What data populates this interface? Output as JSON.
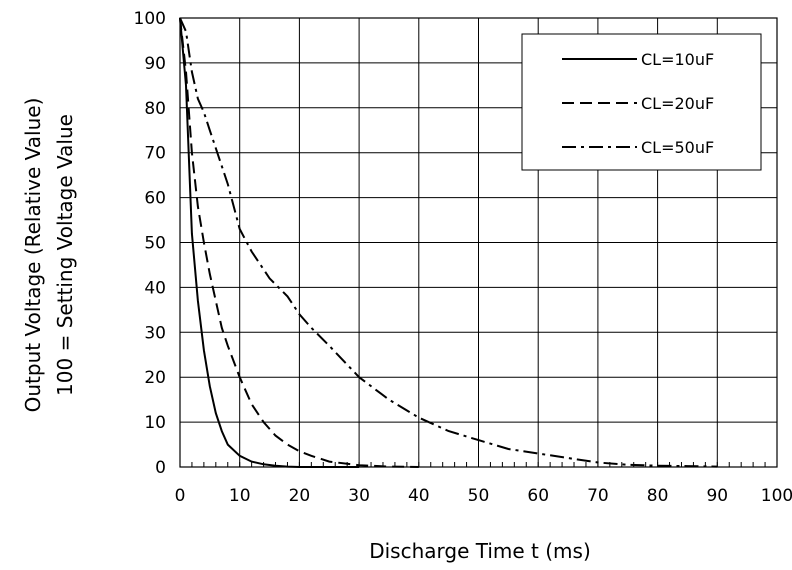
{
  "chart_data": {
    "type": "line",
    "xlabel": "Discharge Time t (ms)",
    "ylabel": [
      "Output Voltage (Relative Value)",
      "100 = Setting Voltage Value"
    ],
    "xlim": [
      0,
      100
    ],
    "ylim": [
      0,
      100
    ],
    "x_ticks": [
      "0",
      "10",
      "20",
      "30",
      "40",
      "50",
      "60",
      "70",
      "80",
      "90",
      "100"
    ],
    "y_ticks": [
      "0",
      "10",
      "20",
      "30",
      "40",
      "50",
      "60",
      "70",
      "80",
      "90",
      "100"
    ],
    "grid": true,
    "legend_position": "top-right",
    "series": [
      {
        "name": "CL=10uF",
        "style": "solid",
        "x": [
          0,
          1,
          2,
          3,
          4,
          5,
          6,
          7,
          8,
          10,
          12,
          14,
          16,
          18,
          20,
          25,
          30
        ],
        "y": [
          100,
          85,
          52,
          37,
          26,
          18,
          12,
          8,
          5,
          2.5,
          1.2,
          0.6,
          0.3,
          0.1,
          0,
          0,
          0
        ]
      },
      {
        "name": "CL=20uF",
        "style": "dashed",
        "x": [
          0,
          1,
          2,
          3,
          4,
          5,
          6,
          7,
          8,
          10,
          12,
          14,
          16,
          18,
          20,
          22,
          25,
          30,
          35,
          40
        ],
        "y": [
          100,
          88,
          70,
          58,
          50,
          43,
          37,
          31,
          27,
          20,
          14,
          10,
          7,
          5,
          3.5,
          2.5,
          1.2,
          0.4,
          0.1,
          0
        ]
      },
      {
        "name": "CL=50uF",
        "style": "dash-dot",
        "x": [
          0,
          1,
          2,
          3,
          4,
          5,
          6,
          8,
          10,
          12,
          15,
          18,
          20,
          22,
          25,
          30,
          35,
          40,
          45,
          50,
          55,
          60,
          65,
          70,
          75,
          80,
          85,
          90
        ],
        "y": [
          100,
          97,
          88,
          82,
          79,
          75,
          71,
          63,
          53,
          48,
          42,
          38,
          34,
          31,
          27,
          20,
          15,
          11,
          8,
          6,
          4,
          3,
          2,
          1,
          0.5,
          0.3,
          0.2,
          0.1
        ]
      }
    ]
  }
}
